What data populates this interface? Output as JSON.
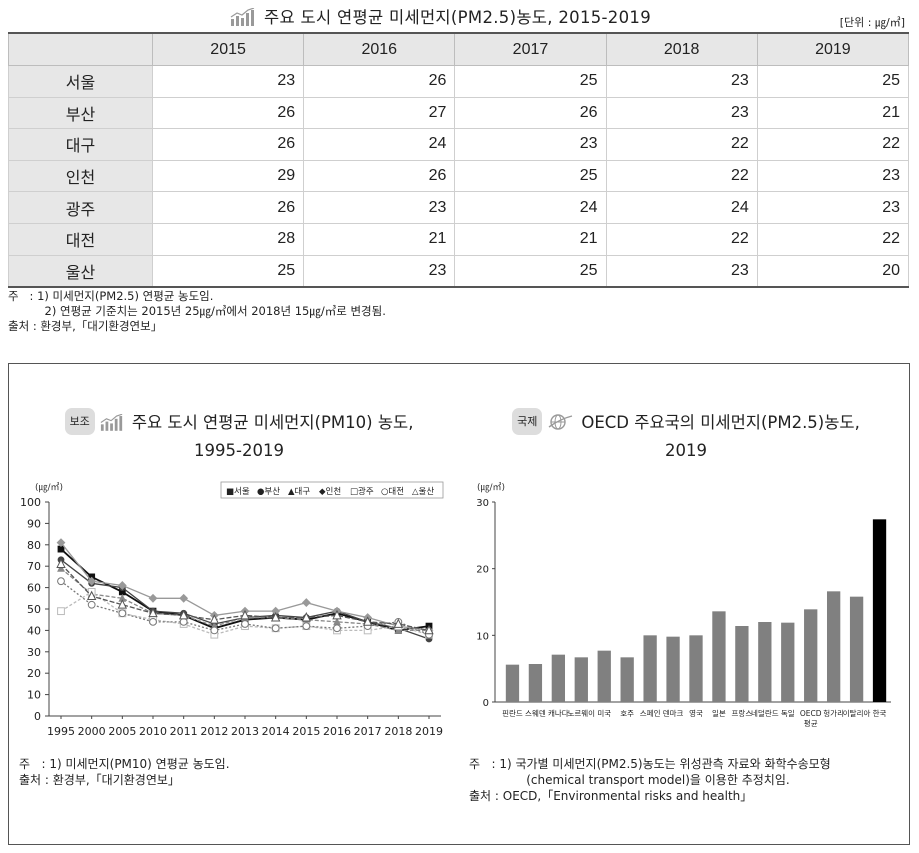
{
  "header": {
    "title": "주요 도시 연평균 미세먼지(PM2.5)농도, 2015-2019",
    "unit": "[단위 : ㎍/㎥]"
  },
  "table": {
    "columns": [
      "",
      "2015",
      "2016",
      "2017",
      "2018",
      "2019"
    ],
    "rows": [
      {
        "city": "서울",
        "values": [
          "23",
          "26",
          "25",
          "23",
          "25"
        ]
      },
      {
        "city": "부산",
        "values": [
          "26",
          "27",
          "26",
          "23",
          "21"
        ]
      },
      {
        "city": "대구",
        "values": [
          "26",
          "24",
          "23",
          "22",
          "22"
        ]
      },
      {
        "city": "인천",
        "values": [
          "29",
          "26",
          "25",
          "22",
          "23"
        ]
      },
      {
        "city": "광주",
        "values": [
          "26",
          "23",
          "24",
          "24",
          "23"
        ]
      },
      {
        "city": "대전",
        "values": [
          "28",
          "21",
          "21",
          "22",
          "22"
        ]
      },
      {
        "city": "울산",
        "values": [
          "25",
          "23",
          "25",
          "23",
          "20"
        ]
      }
    ]
  },
  "notes": {
    "line1": "주   : 1) 미세먼지(PM2.5) 연평균 농도임.",
    "line2": "          2) 연평균 기준치는 2015년 25㎍/㎥에서 2018년 15㎍/㎥로 변경됨.",
    "line3": "출처 : 환경부,「대기환경연보」"
  },
  "left_panel": {
    "badge": "보조",
    "title_line1": "주요 도시 연평균 미세먼지(PM10) 농도,",
    "title_line2": "1995-2019",
    "note1": "주   : 1) 미세먼지(PM10) 연평균 농도임.",
    "note2": "출처 : 환경부,「대기환경연보」"
  },
  "right_panel": {
    "badge": "국제",
    "title_line1": "OECD 주요국의 미세먼지(PM2.5)농도,",
    "title_line2": "2019",
    "note1": "주   : 1) 국가별 미세먼지(PM2.5)농도는 위성관측 자료와 화학수송모형",
    "note2": "               (chemical transport model)을 이용한 추정치임.",
    "note3": "출처 : OECD,「Environmental risks and health」"
  },
  "chart_data": [
    {
      "type": "line",
      "title": "주요 도시 연평균 미세먼지(PM10) 농도, 1995-2019",
      "ylabel": "(㎍/㎥)",
      "ylim": [
        0,
        100
      ],
      "yticks": [
        0,
        10,
        20,
        30,
        40,
        50,
        60,
        70,
        80,
        90,
        100
      ],
      "grid": false,
      "legend": "top-right",
      "x": [
        "1995",
        "2000",
        "2005",
        "2010",
        "2011",
        "2012",
        "2013",
        "2014",
        "2015",
        "2016",
        "2017",
        "2018",
        "2019"
      ],
      "series": [
        {
          "name": "서울",
          "marker": "■",
          "color": "#111111",
          "dash": "",
          "values": [
            78,
            65,
            58,
            49,
            47,
            41,
            45,
            46,
            45,
            48,
            44,
            40,
            42
          ]
        },
        {
          "name": "부산",
          "marker": "●",
          "color": "#444444",
          "dash": "",
          "values": [
            73,
            62,
            60,
            49,
            48,
            43,
            46,
            47,
            46,
            49,
            44,
            41,
            36
          ]
        },
        {
          "name": "대구",
          "marker": "▲",
          "color": "#888888",
          "dash": "4,2",
          "values": [
            69,
            57,
            55,
            48,
            47,
            42,
            46,
            46,
            45,
            44,
            43,
            40,
            40
          ]
        },
        {
          "name": "인천",
          "marker": "◆",
          "color": "#999999",
          "dash": "",
          "values": [
            81,
            63,
            61,
            55,
            55,
            47,
            49,
            49,
            53,
            49,
            46,
            42,
            40
          ]
        },
        {
          "name": "광주",
          "marker": "□",
          "color": "#bbbbbb",
          "dash": "3,2",
          "values": [
            49,
            58,
            48,
            45,
            43,
            38,
            42,
            41,
            42,
            40,
            40,
            42,
            38
          ]
        },
        {
          "name": "대전",
          "marker": "○",
          "color": "#777777",
          "dash": "2,2",
          "values": [
            63,
            52,
            48,
            44,
            44,
            40,
            43,
            41,
            42,
            41,
            42,
            44,
            38
          ]
        },
        {
          "name": "울산",
          "marker": "△",
          "color": "#555555",
          "dash": "5,2",
          "values": [
            71,
            56,
            52,
            48,
            47,
            45,
            47,
            46,
            46,
            47,
            44,
            43,
            40
          ]
        }
      ]
    },
    {
      "type": "bar",
      "title": "OECD 주요국의 미세먼지(PM2.5)농도, 2019",
      "ylabel": "(㎍/㎥)",
      "ylim": [
        0,
        30
      ],
      "yticks": [
        0,
        10,
        20,
        30
      ],
      "grid": false,
      "categories": [
        "핀란드",
        "스웨덴",
        "캐나다",
        "노르웨이",
        "미국",
        "호주",
        "스페인",
        "덴마크",
        "영국",
        "일본",
        "프랑스",
        "네덜란드",
        "독일",
        "OECD 평균",
        "헝가리",
        "이탈리아",
        "한국"
      ],
      "values": [
        5.6,
        5.7,
        7.1,
        6.7,
        7.7,
        6.7,
        10.0,
        9.8,
        10.0,
        13.6,
        11.4,
        12.0,
        11.9,
        13.9,
        16.6,
        15.8,
        27.4
      ],
      "colors": {
        "default": "#808080",
        "highlight": "#000000"
      },
      "highlight_index": 16
    }
  ]
}
